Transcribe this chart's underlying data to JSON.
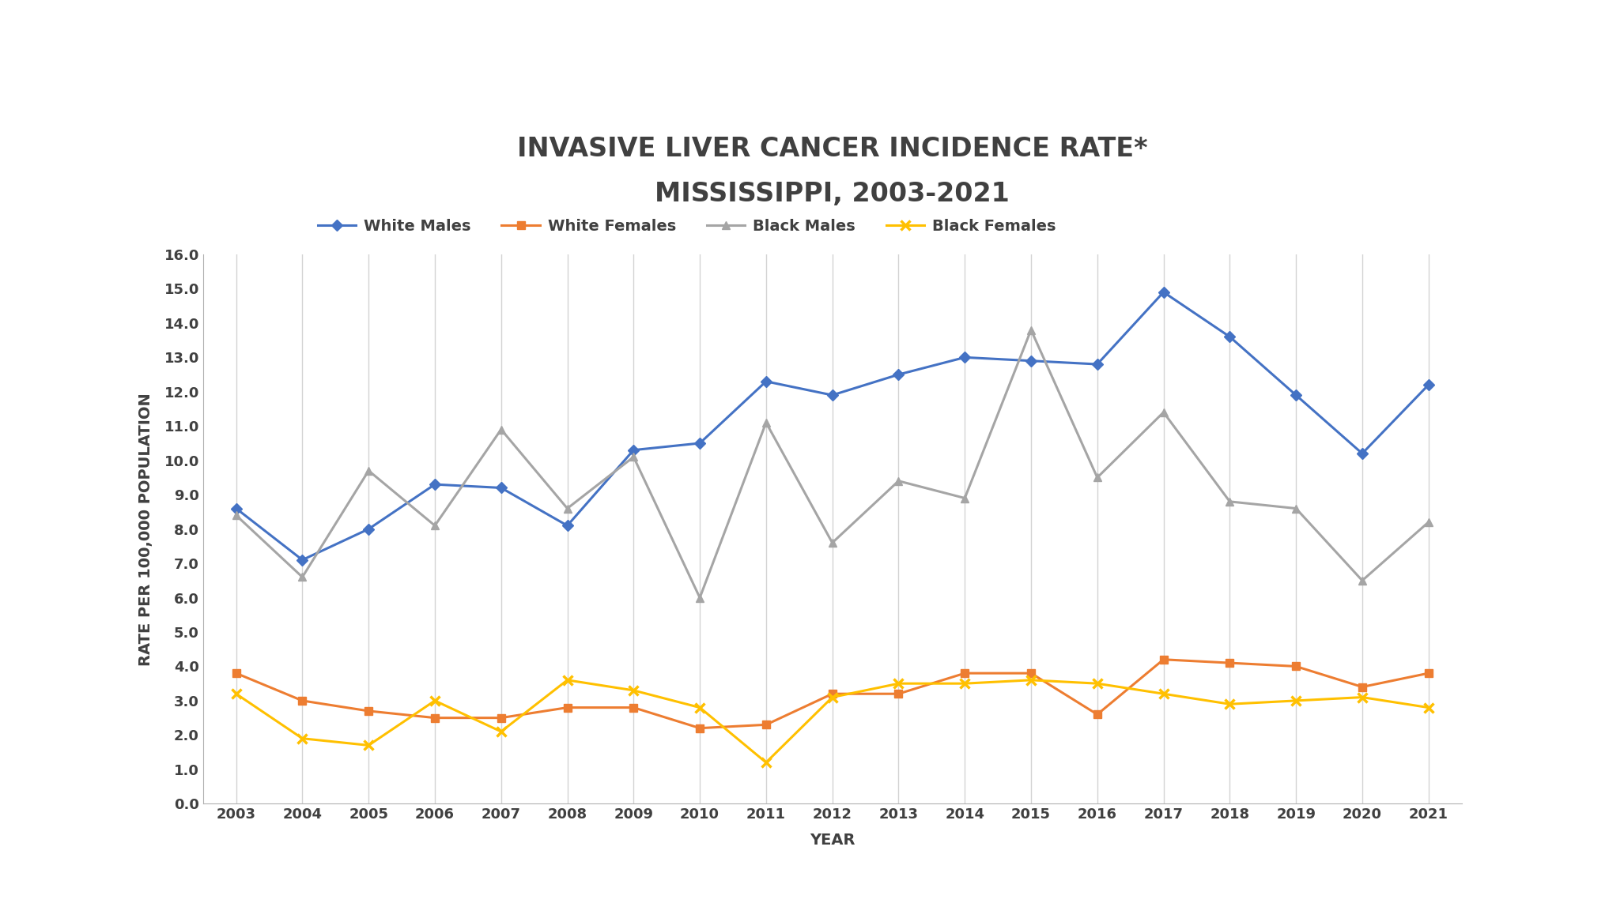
{
  "title_line1": "INVASIVE LIVER CANCER INCIDENCE RATE*",
  "title_line2": "MISSISSIPPI, 2003-2021",
  "xlabel": "YEAR",
  "ylabel": "RATE PER 100,000 POPULATION",
  "years": [
    2003,
    2004,
    2005,
    2006,
    2007,
    2008,
    2009,
    2010,
    2011,
    2012,
    2013,
    2014,
    2015,
    2016,
    2017,
    2018,
    2019,
    2020,
    2021
  ],
  "white_males": [
    8.6,
    7.1,
    8.0,
    9.3,
    9.2,
    8.1,
    10.3,
    10.5,
    12.3,
    11.9,
    12.5,
    13.0,
    12.9,
    12.8,
    14.9,
    13.6,
    11.9,
    10.2,
    12.2
  ],
  "white_females": [
    3.8,
    3.0,
    2.7,
    2.5,
    2.5,
    2.8,
    2.8,
    2.2,
    2.3,
    3.2,
    3.2,
    3.8,
    3.8,
    2.6,
    4.2,
    4.1,
    4.0,
    3.4,
    3.8
  ],
  "black_males": [
    8.4,
    6.6,
    9.7,
    8.1,
    10.9,
    8.6,
    10.1,
    6.0,
    11.1,
    7.6,
    9.4,
    8.9,
    13.8,
    9.5,
    11.4,
    8.8,
    8.6,
    6.5,
    8.2
  ],
  "black_females": [
    3.2,
    1.9,
    1.7,
    3.0,
    2.1,
    3.6,
    3.3,
    2.8,
    1.2,
    3.1,
    3.5,
    3.5,
    3.6,
    3.5,
    3.2,
    2.9,
    3.0,
    3.1,
    2.8
  ],
  "white_males_color": "#4472c4",
  "white_females_color": "#ed7d31",
  "black_males_color": "#a5a5a5",
  "black_females_color": "#ffc000",
  "background_color": "#ffffff",
  "grid_color": "#d3d3d3",
  "ylim": [
    0,
    16.0
  ],
  "yticks": [
    0.0,
    1.0,
    2.0,
    3.0,
    4.0,
    5.0,
    6.0,
    7.0,
    8.0,
    9.0,
    10.0,
    11.0,
    12.0,
    13.0,
    14.0,
    15.0,
    16.0
  ],
  "title_fontsize": 24,
  "tick_fontsize": 13,
  "label_fontsize": 14,
  "legend_fontsize": 14
}
